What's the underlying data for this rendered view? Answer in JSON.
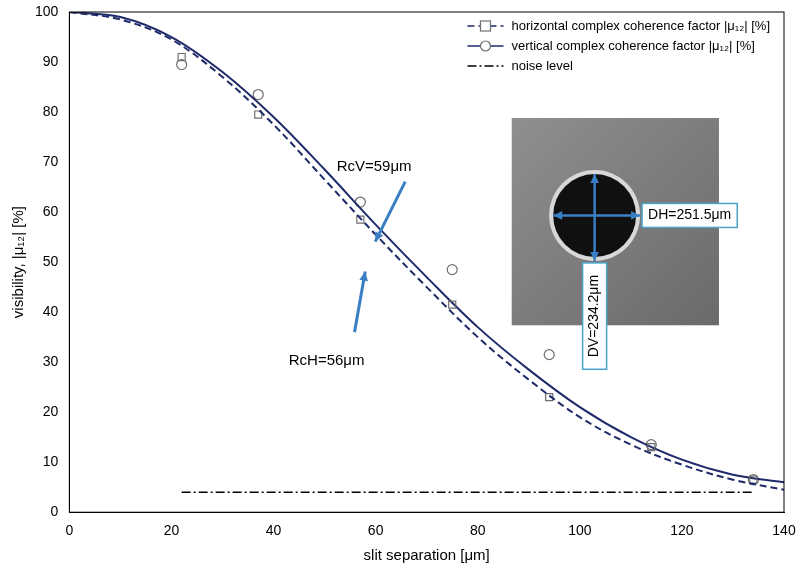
{
  "chart_data": {
    "type": "line",
    "x_label": "slit separation [μm]",
    "y_label": "visibility, |μ₁₂| [%]",
    "xlim": [
      0,
      140
    ],
    "xticks": [
      0,
      20,
      40,
      60,
      80,
      100,
      120,
      140
    ],
    "ylim": [
      0,
      100
    ],
    "yticks": [
      0,
      10,
      20,
      30,
      40,
      50,
      60,
      70,
      80,
      90,
      100
    ],
    "grid": false,
    "legend": "upper right",
    "series": [
      {
        "name": "horizontal complex coherence factor |μ₁₂| [%]",
        "color": "#1f2a6b",
        "line_style": "dashed",
        "marker": "square",
        "x": [
          22,
          37,
          57,
          75,
          94,
          114,
          134
        ],
        "values": [
          91,
          79.5,
          58.5,
          41.5,
          23,
          13,
          6.5
        ],
        "fit": {
          "x": [
            0,
            10,
            20,
            30,
            40,
            50,
            60,
            70,
            80,
            90,
            100,
            110,
            120,
            130,
            140
          ],
          "values": [
            100,
            98.5,
            94.5,
            87,
            77.5,
            66.5,
            55.5,
            45,
            35,
            26.5,
            19,
            13.5,
            9.5,
            6.5,
            4.5
          ]
        }
      },
      {
        "name": "vertical complex coherence factor |μ₁₂| [%]",
        "color": "#1f2a6b",
        "line_style": "solid",
        "marker": "circle",
        "x": [
          22,
          37,
          57,
          75,
          94,
          114,
          134
        ],
        "values": [
          89.5,
          83.5,
          62,
          48.5,
          31.5,
          13.5,
          6.5
        ],
        "fit": {
          "x": [
            0,
            10,
            20,
            30,
            40,
            50,
            60,
            70,
            80,
            90,
            100,
            110,
            120,
            130,
            140
          ],
          "values": [
            100,
            99,
            95,
            88,
            79,
            68.5,
            57.5,
            47,
            37,
            28.5,
            21,
            15,
            10.5,
            7.5,
            6
          ]
        }
      },
      {
        "name": "noise level",
        "color": "#000000",
        "line_style": "dashdot",
        "x": [
          22,
          134
        ],
        "values": [
          4,
          4
        ]
      }
    ],
    "annotations": [
      {
        "text": "RcV=59μm"
      },
      {
        "text": "RcH=56μm"
      }
    ],
    "inset": {
      "labels": [
        "DH=251.5μm",
        "DV=234.2μm"
      ]
    }
  }
}
